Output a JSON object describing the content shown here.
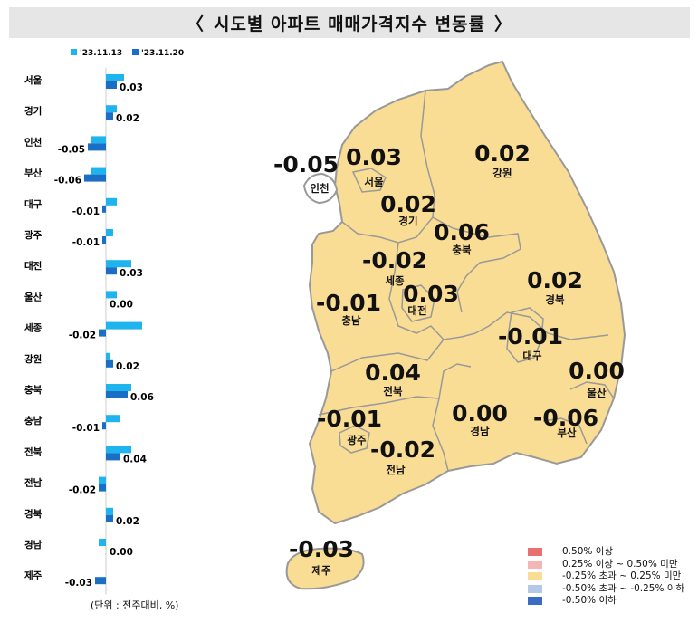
{
  "title": "시도별 아파트 매매가격지수 변동률",
  "title_brackets": {
    "left": "〈",
    "right": "〉"
  },
  "unit_note": "(단위 : 전주대비, %)",
  "colors": {
    "series_prev": "#1fb4ee",
    "series_curr": "#1a6fc4",
    "map_fill": "#fadd94",
    "map_stroke": "#999999",
    "title_bg": "#e6e6e6"
  },
  "chart_data": {
    "type": "bar",
    "orientation": "horizontal",
    "categories": [
      "서울",
      "경기",
      "인천",
      "부산",
      "대구",
      "광주",
      "대전",
      "울산",
      "세종",
      "강원",
      "충북",
      "충남",
      "전북",
      "전남",
      "경북",
      "경남",
      "제주"
    ],
    "series": [
      {
        "name": "'23.11.13",
        "values": [
          0.05,
          0.03,
          -0.04,
          -0.04,
          0.03,
          0.02,
          0.07,
          0.03,
          0.1,
          0.01,
          0.07,
          0.04,
          0.07,
          -0.02,
          0.02,
          -0.02,
          0.0
        ]
      },
      {
        "name": "'23.11.20",
        "values": [
          0.03,
          0.02,
          -0.05,
          -0.06,
          -0.01,
          -0.01,
          0.03,
          0.0,
          -0.02,
          0.02,
          0.06,
          -0.01,
          0.04,
          -0.02,
          0.02,
          0.0,
          -0.03
        ]
      }
    ],
    "data_labels": [
      "0.03",
      "0.02",
      "-0.05",
      "-0.06",
      "-0.01",
      "-0.01",
      "0.03",
      "0.00",
      "-0.02",
      "0.02",
      "0.06",
      "-0.01",
      "0.04",
      "-0.02",
      "0.02",
      "0.00",
      "-0.03"
    ],
    "legend_position": "top",
    "grid": false
  },
  "map": {
    "regions": [
      {
        "name": "인천",
        "value": "-0.05"
      },
      {
        "name": "서울",
        "value": "0.03"
      },
      {
        "name": "강원",
        "value": "0.02"
      },
      {
        "name": "경기",
        "value": "0.02"
      },
      {
        "name": "충북",
        "value": "0.06"
      },
      {
        "name": "세종",
        "value": "-0.02"
      },
      {
        "name": "충남",
        "value": "-0.01"
      },
      {
        "name": "대전",
        "value": "0.03"
      },
      {
        "name": "경북",
        "value": "0.02"
      },
      {
        "name": "대구",
        "value": "-0.01"
      },
      {
        "name": "전북",
        "value": "0.04"
      },
      {
        "name": "울산",
        "value": "0.00"
      },
      {
        "name": "광주",
        "value": "-0.01"
      },
      {
        "name": "경남",
        "value": "0.00"
      },
      {
        "name": "부산",
        "value": "-0.06"
      },
      {
        "name": "전남",
        "value": "-0.02"
      },
      {
        "name": "제주",
        "value": "-0.03"
      }
    ],
    "legend": [
      {
        "label": "0.50% 이상",
        "color": "#e8706f"
      },
      {
        "label": "0.25% 이상 ~ 0.50% 미만",
        "color": "#f4b6b4"
      },
      {
        "label": "-0.25% 초과 ~ 0.25% 미만",
        "color": "#fadd94"
      },
      {
        "label": "-0.50% 초과 ~ -0.25% 이하",
        "color": "#b6c8e8"
      },
      {
        "label": "-0.50% 이하",
        "color": "#3a6cc4"
      }
    ]
  }
}
